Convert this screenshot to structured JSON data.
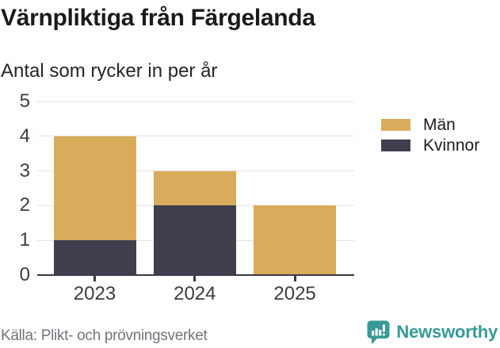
{
  "header": {
    "title": "Värnpliktiga från Färgelanda",
    "subtitle": "Antal som rycker in per år"
  },
  "chart_data": {
    "type": "bar",
    "stacked": true,
    "title": "Värnpliktiga från Färgelanda",
    "subtitle": "Antal som rycker in per år",
    "categories": [
      "2023",
      "2024",
      "2025"
    ],
    "series": [
      {
        "name": "Män",
        "color": "#d9ac5b",
        "values": [
          3,
          1,
          2
        ]
      },
      {
        "name": "Kvinnor",
        "color": "#413f4d",
        "values": [
          1,
          2,
          0
        ]
      }
    ],
    "stack_bottom_to_top": [
      "Kvinnor",
      "Män"
    ],
    "totals": [
      4,
      3,
      2
    ],
    "xlabel": "",
    "ylabel": "",
    "ylim": [
      0,
      5
    ],
    "yticks": [
      0,
      1,
      2,
      3,
      4,
      5
    ],
    "grid": true,
    "legend_position": "top-right"
  },
  "footer": {
    "source": "Källa: Plikt- och prövningsverket",
    "brand": "Newsworthy",
    "brand_color": "#379a96"
  }
}
